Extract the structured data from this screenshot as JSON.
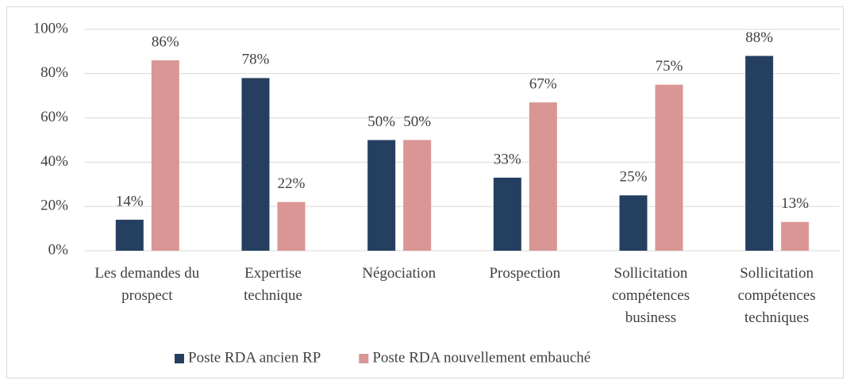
{
  "chart_data": {
    "type": "bar",
    "categories": [
      "Les demandes du prospect",
      "Expertise technique",
      "Négociation",
      "Prospection",
      "Sollicitation compétences business",
      "Sollicitation compétences techniques"
    ],
    "series": [
      {
        "name": "Poste RDA ancien RP",
        "color": "#243f60",
        "values": [
          14,
          78,
          50,
          33,
          25,
          88
        ],
        "value_labels": [
          "14%",
          "78%",
          "50%",
          "33%",
          "25%",
          "88%"
        ]
      },
      {
        "name": "Poste RDA nouvellement embauché",
        "color": "#d99694",
        "values": [
          86,
          22,
          50,
          67,
          75,
          13
        ],
        "value_labels": [
          "86%",
          "22%",
          "50%",
          "67%",
          "75%",
          "13%"
        ]
      }
    ],
    "ylim": [
      0,
      100
    ],
    "yticks": [
      {
        "value": 0,
        "label": "0%"
      },
      {
        "value": 20,
        "label": "20%"
      },
      {
        "value": 40,
        "label": "40%"
      },
      {
        "value": 60,
        "label": "60%"
      },
      {
        "value": 80,
        "label": "80%"
      },
      {
        "value": 100,
        "label": "100%"
      }
    ],
    "grid": true,
    "legend": "bottom"
  }
}
